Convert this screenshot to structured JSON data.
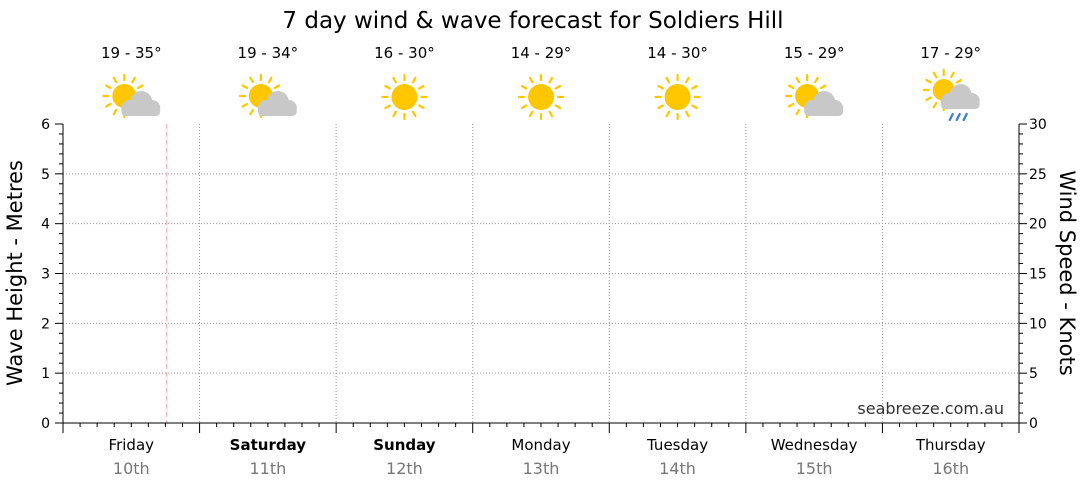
{
  "chart_data": {
    "type": "line",
    "title": "7 day wind & wave forecast for Soldiers Hill",
    "ylabel": "Wave Height - Metres",
    "y2label": "Wind Speed - Knots",
    "ylim": [
      0,
      6
    ],
    "y2lim": [
      0,
      30
    ],
    "yticks": [
      "0",
      "1",
      "2",
      "3",
      "4",
      "5",
      "6"
    ],
    "y2ticks": [
      "0",
      "5",
      "10",
      "15",
      "20",
      "25",
      "30"
    ],
    "grid": true,
    "series": [],
    "credit": "seabreeze.com.au",
    "days": [
      {
        "name": "Friday",
        "date": "10th",
        "temp": "19 - 35°",
        "icon": "partly-cloudy-icon",
        "bold": false
      },
      {
        "name": "Saturday",
        "date": "11th",
        "temp": "19 - 34°",
        "icon": "partly-cloudy-icon",
        "bold": true
      },
      {
        "name": "Sunday",
        "date": "12th",
        "temp": "16 - 30°",
        "icon": "sunny-icon",
        "bold": true
      },
      {
        "name": "Monday",
        "date": "13th",
        "temp": "14 - 29°",
        "icon": "sunny-icon",
        "bold": false
      },
      {
        "name": "Tuesday",
        "date": "14th",
        "temp": "14 - 30°",
        "icon": "sunny-icon",
        "bold": false
      },
      {
        "name": "Wednesday",
        "date": "15th",
        "temp": "15 - 29°",
        "icon": "partly-cloudy-icon",
        "bold": false
      },
      {
        "name": "Thursday",
        "date": "16th",
        "temp": "17 - 29°",
        "icon": "showers-icon",
        "bold": false
      }
    ],
    "colors": {
      "sun": "#ffc700",
      "cloud": "#c8c8c8",
      "rain": "#3a7bd5",
      "now_line": "#f0a0a0",
      "grid": "#999999"
    }
  }
}
